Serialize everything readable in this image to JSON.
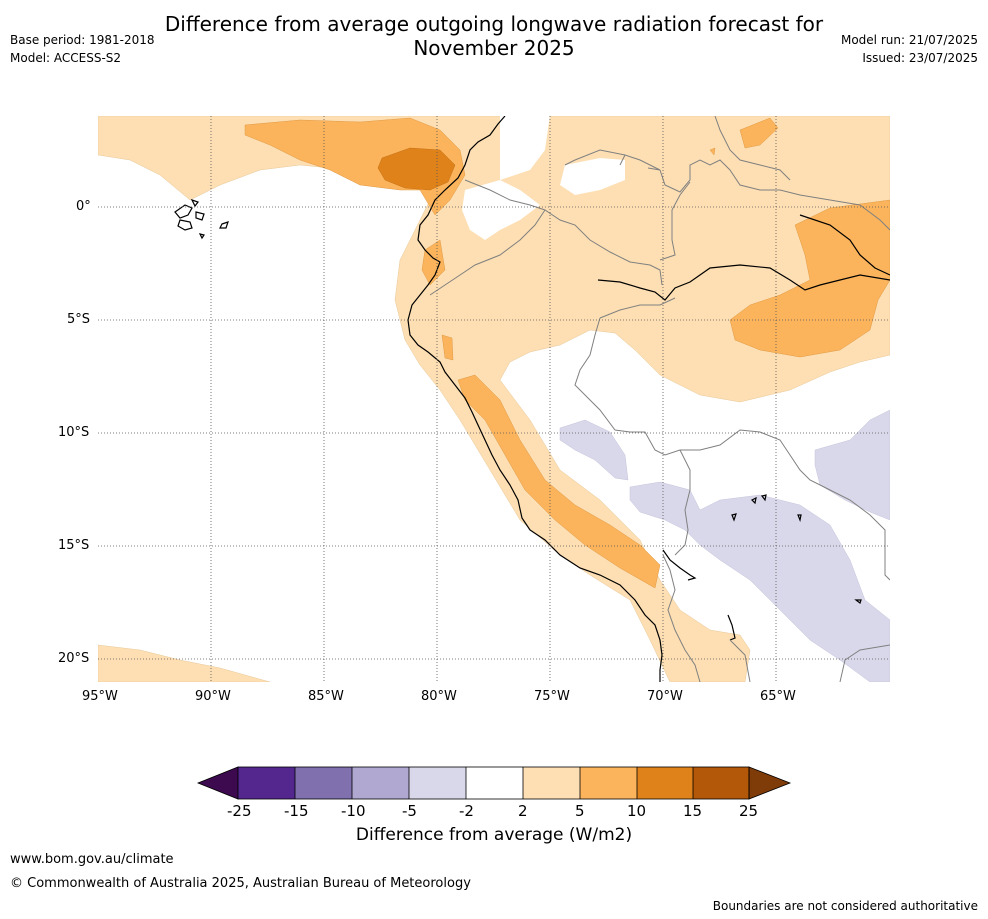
{
  "title": {
    "line1": "Difference from average outgoing longwave radiation forecast for",
    "line2": "November 2025"
  },
  "meta_left": {
    "base_period": "Base period: 1981-2018",
    "model": "Model: ACCESS-S2"
  },
  "meta_right": {
    "model_run": "Model run: 21/07/2025",
    "issued": "Issued: 23/07/2025"
  },
  "map": {
    "lon_labels": [
      "95°W",
      "90°W",
      "85°W",
      "80°W",
      "75°W",
      "70°W",
      "65°W"
    ],
    "lat_labels": [
      "0°",
      "5°S",
      "10°S",
      "15°S",
      "20°S"
    ]
  },
  "colorbar": {
    "label": "Difference from average (W/m2)",
    "ticks": [
      "-25",
      "-15",
      "-10",
      "-5",
      "-2",
      "2",
      "5",
      "10",
      "15",
      "25"
    ],
    "colors": {
      "below_-25": "#3d0a4f",
      "-25_-15": "#54278f",
      "-15_-10": "#8070ad",
      "-10_-5": "#b1a8d2",
      "-5_-2": "#d9d8ea",
      "-2_2": "#ffffff",
      "2_5": "#fddfb3",
      "5_10": "#fbb45c",
      "10_15": "#e0821a",
      "15_25": "#b35709",
      "above_25": "#7f3b08"
    }
  },
  "footer": {
    "url": "www.bom.gov.au/climate",
    "copyright": "© Commonwealth of Australia 2025, Australian Bureau of Meteorology",
    "note": "Boundaries are not considered authoritative"
  }
}
